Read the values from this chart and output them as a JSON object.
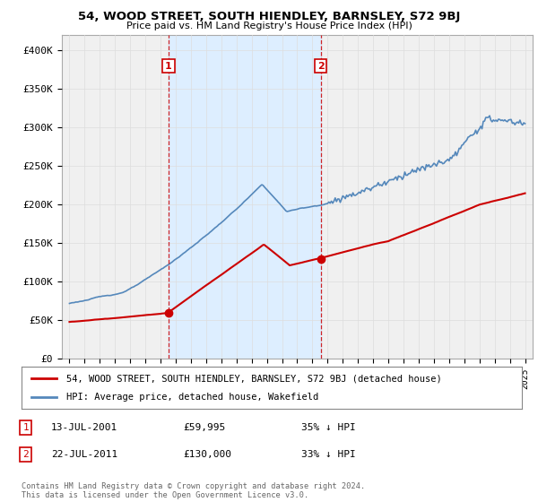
{
  "title": "54, WOOD STREET, SOUTH HIENDLEY, BARNSLEY, S72 9BJ",
  "subtitle": "Price paid vs. HM Land Registry's House Price Index (HPI)",
  "legend_line1": "54, WOOD STREET, SOUTH HIENDLEY, BARNSLEY, S72 9BJ (detached house)",
  "legend_line2": "HPI: Average price, detached house, Wakefield",
  "annotation1_date": "13-JUL-2001",
  "annotation1_price": "£59,995",
  "annotation1_hpi": "35% ↓ HPI",
  "annotation1_year": 2001.53,
  "annotation1_value": 59995,
  "annotation2_date": "22-JUL-2011",
  "annotation2_price": "£130,000",
  "annotation2_hpi": "33% ↓ HPI",
  "annotation2_year": 2011.55,
  "annotation2_value": 130000,
  "ylabel_ticks": [
    0,
    50000,
    100000,
    150000,
    200000,
    250000,
    300000,
    350000,
    400000
  ],
  "ylabel_labels": [
    "£0",
    "£50K",
    "£100K",
    "£150K",
    "£200K",
    "£250K",
    "£300K",
    "£350K",
    "£400K"
  ],
  "ylim": [
    0,
    420000
  ],
  "xlim_min": 1994.5,
  "xlim_max": 2025.5,
  "copyright_text": "Contains HM Land Registry data © Crown copyright and database right 2024.\nThis data is licensed under the Open Government Licence v3.0.",
  "red_color": "#cc0000",
  "blue_color": "#5588bb",
  "shade_color": "#ddeeff",
  "background_color": "#ffffff",
  "plot_bg_color": "#f0f0f0",
  "grid_color": "#dddddd"
}
